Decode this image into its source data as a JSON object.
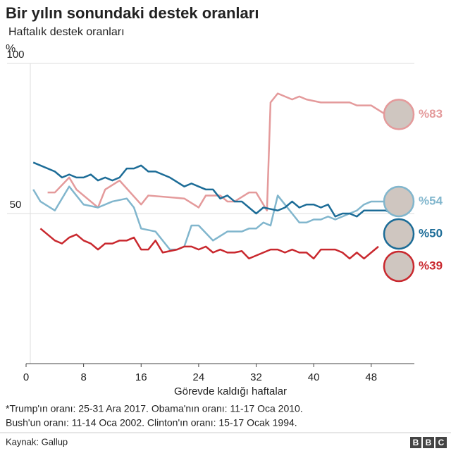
{
  "chart_data": {
    "type": "line",
    "title": "Bir yılın sonundaki destek oranları",
    "subtitle": "Haftalık destek oranları",
    "y_unit": "%",
    "x_label": "Görevde kaldığı haftalar",
    "xlim": [
      0,
      54
    ],
    "xticks": [
      0,
      8,
      16,
      24,
      32,
      40,
      48
    ],
    "ylim": [
      0,
      100
    ],
    "yticks": [
      50,
      100
    ],
    "grid": true,
    "series": [
      {
        "name": "Bush",
        "color": "#e49a9b",
        "end_label": "%83",
        "x": [
          3,
          4,
          6,
          7,
          10,
          11,
          13,
          16,
          17,
          22,
          24,
          25,
          27,
          28,
          29,
          31,
          32,
          33.5,
          34,
          35,
          37,
          38,
          39,
          41,
          45,
          46,
          48,
          50
        ],
        "values": [
          57,
          57,
          62,
          58,
          52,
          58,
          61,
          53,
          56,
          55,
          52,
          56,
          56,
          54,
          54,
          57,
          57,
          51,
          87,
          90,
          88,
          89,
          88,
          87,
          87,
          86,
          86,
          83
        ]
      },
      {
        "name": "Clinton",
        "color": "#81b6cd",
        "end_label": "%54",
        "x": [
          1,
          2,
          4,
          6,
          8,
          10,
          12,
          14,
          15,
          16,
          18,
          20,
          21,
          22,
          23,
          24,
          26,
          28,
          30,
          31,
          32,
          33,
          34,
          35,
          37,
          38,
          39,
          40,
          41,
          42,
          43,
          45,
          46,
          47,
          48,
          50,
          51
        ],
        "values": [
          58,
          54,
          51,
          59,
          53,
          52,
          54,
          55,
          52,
          45,
          44,
          38,
          38,
          39,
          46,
          46,
          41,
          44,
          44,
          45,
          45,
          47,
          46,
          56,
          50,
          47,
          47,
          48,
          48,
          49,
          48,
          50,
          51,
          53,
          54,
          54,
          54
        ]
      },
      {
        "name": "Obama",
        "color": "#1c6c97",
        "end_label": "%50",
        "x": [
          1,
          4,
          5,
          6,
          7,
          8,
          9,
          10,
          11,
          12,
          13,
          14,
          15,
          16,
          17,
          18,
          20,
          22,
          23,
          24,
          25,
          26,
          27,
          28,
          29,
          30,
          31,
          32,
          33,
          35,
          36,
          37,
          38,
          39,
          40,
          41,
          42,
          43,
          44,
          45,
          46,
          47,
          48,
          50,
          51
        ],
        "values": [
          67,
          64,
          62,
          63,
          62,
          62,
          63,
          61,
          62,
          61,
          62,
          65,
          65,
          66,
          64,
          64,
          62,
          59,
          60,
          59,
          58,
          58,
          55,
          56,
          54,
          54,
          52,
          50,
          52,
          51,
          52,
          54,
          52,
          53,
          53,
          52,
          53,
          49,
          50,
          50,
          49,
          51,
          51,
          51,
          50
        ]
      },
      {
        "name": "Trump",
        "color": "#c9282e",
        "end_label": "%39",
        "x": [
          2,
          3,
          4,
          5,
          6,
          7,
          8,
          9,
          10,
          11,
          12,
          13,
          14,
          15,
          16,
          17,
          18,
          19,
          20,
          21,
          22,
          23,
          24,
          25,
          26,
          27,
          28,
          29,
          30,
          31,
          32,
          33,
          34,
          35,
          36,
          37,
          38,
          39,
          40,
          41,
          42,
          43,
          44,
          45,
          46,
          47,
          48,
          49
        ],
        "values": [
          45,
          43,
          41,
          40,
          42,
          43,
          41,
          40,
          38,
          40,
          40,
          41,
          41,
          42,
          38,
          38,
          41,
          37,
          37.5,
          38,
          39,
          39,
          38,
          39,
          37,
          38,
          37,
          37,
          37.5,
          35,
          36,
          37,
          38,
          38,
          37,
          38,
          37,
          37,
          35,
          38,
          38,
          38,
          37,
          35,
          37,
          35,
          37,
          39
        ]
      }
    ],
    "notes": [
      "*Trump'ın oranı: 25-31 Ara 2017. Obama'nın oranı: 11-17 Oca 2010.",
      "Bush'un oranı: 11-14 Oca 2002. Clinton'ın oranı: 15-17 Ocak 1994."
    ],
    "source": "Kaynak: Gallup",
    "logo": [
      "B",
      "B",
      "C"
    ]
  }
}
